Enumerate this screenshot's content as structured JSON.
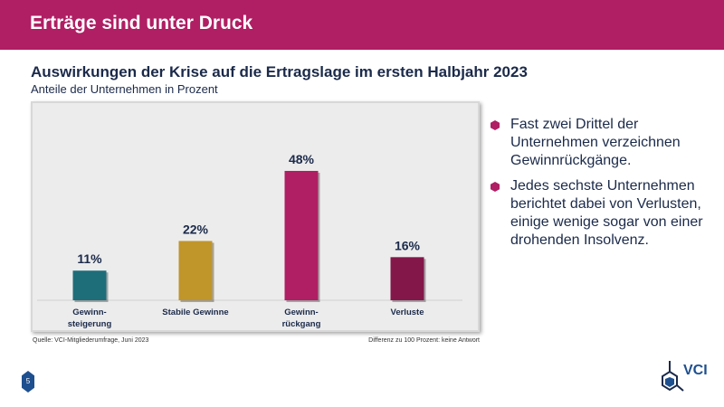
{
  "header": {
    "title": "Erträge sind unter Druck"
  },
  "chart_data": {
    "type": "bar",
    "title": "Auswirkungen der Krise auf die Ertragslage im ersten Halbjahr 2023",
    "subtitle": "Anteile der Unternehmen in Prozent",
    "categories": [
      "Gewinn-\nsteigerung",
      "Stabile Gewinne",
      "Gewinn-\nrückgang",
      "Verluste"
    ],
    "values": [
      11,
      22,
      48,
      16
    ],
    "data_labels": [
      "11%",
      "22%",
      "48%",
      "16%"
    ],
    "colors": [
      "#1e6e7a",
      "#c0952a",
      "#b01e63",
      "#84174a"
    ],
    "ylim": [
      0,
      55
    ],
    "grid": false,
    "source": "Quelle: VCI-Mitgliederumfrage, Juni 2023",
    "note": "Differenz zu 100 Prozent: keine Antwort"
  },
  "bullets": [
    "Fast zwei Drittel der Unternehmen verzeichnen Gewinnrückgänge.",
    "Jedes sechste Unternehmen berichtet dabei von Verlusten, einige wenige sogar von einer drohenden Insolvenz."
  ],
  "footer": {
    "page_number": "5",
    "logo_text": "VCI"
  }
}
